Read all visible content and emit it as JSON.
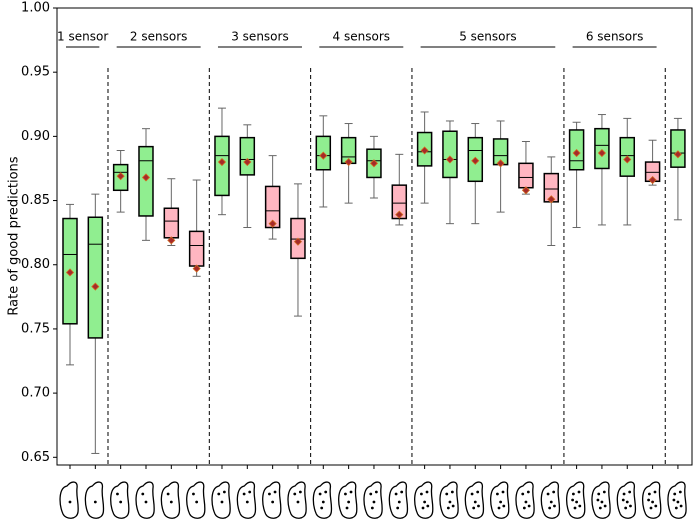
{
  "chart_data": {
    "type": "box",
    "y_label": "Rate of good predictions",
    "ylim": [
      0.644,
      1.0
    ],
    "yticks": [
      0.65,
      {
        "value": 0.7,
        "label": "0.70"
      },
      0.75,
      {
        "value": 0.8,
        "label": "0.80"
      },
      0.85,
      {
        "value": 0.9,
        "label": "0.90"
      },
      0.95,
      {
        "value": 1.0,
        "label": "1.00"
      }
    ],
    "groups": [
      {
        "label": "1 sensor",
        "boxes": [
          {
            "low": 0.722,
            "q1": 0.754,
            "median": 0.808,
            "q3": 0.836,
            "high": 0.847,
            "mean": 0.794,
            "color": "#90ee90"
          },
          {
            "low": 0.653,
            "q1": 0.743,
            "median": 0.816,
            "q3": 0.837,
            "high": 0.855,
            "mean": 0.783,
            "color": "#90ee90"
          }
        ]
      },
      {
        "label": "2 sensors",
        "boxes": [
          {
            "low": 0.841,
            "q1": 0.858,
            "median": 0.872,
            "q3": 0.878,
            "high": 0.889,
            "mean": 0.869,
            "color": "#90ee90"
          },
          {
            "low": 0.819,
            "q1": 0.838,
            "median": 0.881,
            "q3": 0.892,
            "high": 0.906,
            "mean": 0.868,
            "color": "#90ee90"
          },
          {
            "low": 0.815,
            "q1": 0.821,
            "median": 0.834,
            "q3": 0.844,
            "high": 0.867,
            "mean": 0.819,
            "color": "#ffb6c1"
          },
          {
            "low": 0.791,
            "q1": 0.799,
            "median": 0.815,
            "q3": 0.826,
            "high": 0.866,
            "mean": 0.797,
            "color": "#ffb6c1"
          }
        ]
      },
      {
        "label": "3 sensors",
        "boxes": [
          {
            "low": 0.839,
            "q1": 0.854,
            "median": 0.885,
            "q3": 0.9,
            "high": 0.922,
            "mean": 0.88,
            "color": "#90ee90"
          },
          {
            "low": 0.829,
            "q1": 0.87,
            "median": 0.882,
            "q3": 0.899,
            "high": 0.909,
            "mean": 0.88,
            "color": "#90ee90"
          },
          {
            "low": 0.82,
            "q1": 0.829,
            "median": 0.842,
            "q3": 0.861,
            "high": 0.885,
            "mean": 0.832,
            "color": "#ffb6c1"
          },
          {
            "low": 0.76,
            "q1": 0.805,
            "median": 0.82,
            "q3": 0.836,
            "high": 0.863,
            "mean": 0.818,
            "color": "#ffb6c1"
          }
        ]
      },
      {
        "label": "4 sensors",
        "boxes": [
          {
            "low": 0.845,
            "q1": 0.874,
            "median": 0.885,
            "q3": 0.9,
            "high": 0.916,
            "mean": 0.885,
            "color": "#90ee90"
          },
          {
            "low": 0.848,
            "q1": 0.879,
            "median": 0.884,
            "q3": 0.899,
            "high": 0.91,
            "mean": 0.88,
            "color": "#90ee90"
          },
          {
            "low": 0.852,
            "q1": 0.868,
            "median": 0.881,
            "q3": 0.89,
            "high": 0.9,
            "mean": 0.879,
            "color": "#90ee90"
          },
          {
            "low": 0.831,
            "q1": 0.836,
            "median": 0.848,
            "q3": 0.862,
            "high": 0.886,
            "mean": 0.839,
            "color": "#ffb6c1"
          }
        ]
      },
      {
        "label": "5 sensors",
        "boxes": [
          {
            "low": 0.848,
            "q1": 0.877,
            "median": 0.888,
            "q3": 0.903,
            "high": 0.919,
            "mean": 0.889,
            "color": "#90ee90"
          },
          {
            "low": 0.832,
            "q1": 0.868,
            "median": 0.882,
            "q3": 0.904,
            "high": 0.912,
            "mean": 0.882,
            "color": "#90ee90"
          },
          {
            "low": 0.832,
            "q1": 0.865,
            "median": 0.889,
            "q3": 0.899,
            "high": 0.91,
            "mean": 0.881,
            "color": "#90ee90"
          },
          {
            "low": 0.841,
            "q1": 0.878,
            "median": 0.885,
            "q3": 0.898,
            "high": 0.912,
            "mean": 0.879,
            "color": "#90ee90"
          },
          {
            "low": 0.855,
            "q1": 0.86,
            "median": 0.868,
            "q3": 0.879,
            "high": 0.896,
            "mean": 0.858,
            "color": "#ffb6c1"
          },
          {
            "low": 0.815,
            "q1": 0.849,
            "median": 0.859,
            "q3": 0.871,
            "high": 0.884,
            "mean": 0.851,
            "color": "#ffb6c1"
          }
        ]
      },
      {
        "label": "6 sensors",
        "boxes": [
          {
            "low": 0.829,
            "q1": 0.874,
            "median": 0.881,
            "q3": 0.905,
            "high": 0.911,
            "mean": 0.887,
            "color": "#90ee90"
          },
          {
            "low": 0.831,
            "q1": 0.875,
            "median": 0.893,
            "q3": 0.906,
            "high": 0.917,
            "mean": 0.887,
            "color": "#90ee90"
          },
          {
            "low": 0.831,
            "q1": 0.869,
            "median": 0.885,
            "q3": 0.899,
            "high": 0.914,
            "mean": 0.882,
            "color": "#90ee90"
          },
          {
            "low": 0.862,
            "q1": 0.865,
            "median": 0.872,
            "q3": 0.88,
            "high": 0.897,
            "mean": 0.866,
            "color": "#ffb6c1"
          }
        ]
      },
      {
        "label": null,
        "boxes": [
          {
            "low": 0.835,
            "q1": 0.876,
            "median": 0.887,
            "q3": 0.905,
            "high": 0.914,
            "mean": 0.886,
            "color": "#90ee90"
          }
        ]
      }
    ]
  }
}
